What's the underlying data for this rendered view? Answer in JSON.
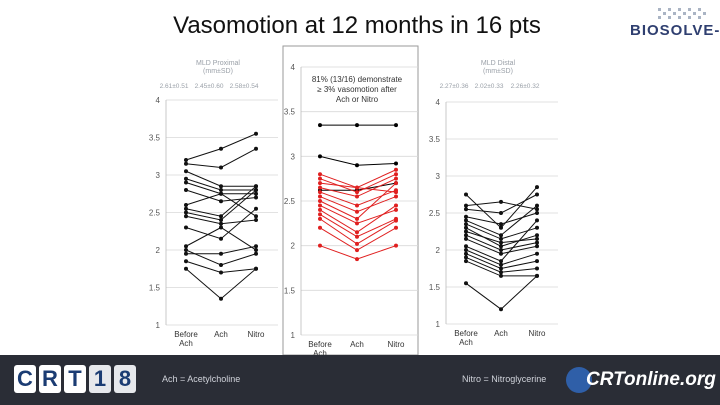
{
  "title": "Vasomotion at 12 months in 16 pts",
  "brand": "BIOSOLVE-II",
  "footer": {
    "ach_legend": "Ach = Acetylcholine",
    "nitro_legend": "Nitro = Nitroglycerine",
    "crt_letters": [
      "C",
      "R",
      "T",
      "1",
      "8"
    ],
    "crtonline": "CRTonline.org"
  },
  "chart_data": [
    {
      "type": "line",
      "panel": "left",
      "title": "MLD Proximal (mm±SD)",
      "subtitle": [
        "2.61±0.51",
        "2.45±0.60",
        "2.58±0.54"
      ],
      "categories": [
        "Before Ach",
        "Ach",
        "Nitro"
      ],
      "ylim": [
        1,
        4
      ],
      "yticks": [
        "1",
        "1.5",
        "2",
        "2.5",
        "3",
        "3.5",
        "4"
      ],
      "series": [
        {
          "values": [
            3.2,
            3.35,
            3.55
          ]
        },
        {
          "values": [
            3.15,
            3.1,
            3.35
          ]
        },
        {
          "values": [
            3.05,
            2.85,
            2.85
          ]
        },
        {
          "values": [
            2.95,
            2.8,
            2.8
          ]
        },
        {
          "values": [
            2.9,
            2.75,
            2.45
          ]
        },
        {
          "values": [
            2.8,
            2.65,
            2.7
          ]
        },
        {
          "values": [
            2.6,
            2.75,
            2.75
          ]
        },
        {
          "values": [
            2.55,
            2.45,
            2.85
          ]
        },
        {
          "values": [
            2.5,
            2.4,
            2.8
          ]
        },
        {
          "values": [
            2.45,
            2.35,
            2.4
          ]
        },
        {
          "values": [
            2.3,
            2.15,
            2.55
          ]
        },
        {
          "values": [
            2.05,
            2.3,
            2.0
          ]
        },
        {
          "values": [
            1.95,
            1.95,
            2.05
          ]
        },
        {
          "values": [
            2.0,
            1.8,
            1.95
          ]
        },
        {
          "values": [
            1.85,
            1.7,
            1.75
          ]
        },
        {
          "values": [
            1.75,
            1.35,
            1.75
          ]
        }
      ]
    },
    {
      "type": "line",
      "panel": "center",
      "annotation": "81% (13/16) demonstrate ≥ 3% vasomotion after Ach or Nitro",
      "categories": [
        "Before Ach",
        "Ach",
        "Nitro"
      ],
      "ylim": [
        1,
        4
      ],
      "yticks": [
        "1",
        "1.5",
        "2",
        "2.5",
        "3",
        "3.5",
        "4"
      ],
      "colors": {
        "responder": "#e02020",
        "non_responder": "#000000"
      },
      "series": [
        {
          "values": [
            3.35,
            3.35,
            3.35
          ],
          "color": "#000000"
        },
        {
          "values": [
            3.0,
            2.9,
            2.92
          ],
          "color": "#000000"
        },
        {
          "values": [
            2.62,
            2.62,
            2.7
          ],
          "color": "#000000"
        },
        {
          "values": [
            2.8,
            2.65,
            2.85
          ],
          "color": "#e02020"
        },
        {
          "values": [
            2.75,
            2.6,
            2.8
          ],
          "color": "#e02020"
        },
        {
          "values": [
            2.7,
            2.65,
            2.6
          ],
          "color": "#e02020"
        },
        {
          "values": [
            2.65,
            2.55,
            2.75
          ],
          "color": "#e02020"
        },
        {
          "values": [
            2.6,
            2.45,
            2.62
          ],
          "color": "#e02020"
        },
        {
          "values": [
            2.55,
            2.38,
            2.55
          ],
          "color": "#e02020"
        },
        {
          "values": [
            2.5,
            2.3,
            2.7
          ],
          "color": "#e02020"
        },
        {
          "values": [
            2.45,
            2.25,
            2.4
          ],
          "color": "#e02020"
        },
        {
          "values": [
            2.4,
            2.15,
            2.45
          ],
          "color": "#e02020"
        },
        {
          "values": [
            2.35,
            2.1,
            2.3
          ],
          "color": "#e02020"
        },
        {
          "values": [
            2.3,
            2.02,
            2.28
          ],
          "color": "#e02020"
        },
        {
          "values": [
            2.2,
            1.95,
            2.2
          ],
          "color": "#e02020"
        },
        {
          "values": [
            2.0,
            1.85,
            2.0
          ],
          "color": "#e02020"
        }
      ]
    },
    {
      "type": "line",
      "panel": "right",
      "title": "MLD Distal (mm±SD)",
      "subtitle": [
        "2.27±0.36",
        "2.02±0.33",
        "2.26±0.32"
      ],
      "categories": [
        "Before Ach",
        "Ach",
        "Nitro"
      ],
      "ylim": [
        1,
        4
      ],
      "yticks": [
        "1",
        "1.5",
        "2",
        "2.5",
        "3",
        "3.5",
        "4"
      ],
      "series": [
        {
          "values": [
            2.75,
            2.3,
            2.85
          ]
        },
        {
          "values": [
            2.6,
            2.65,
            2.55
          ]
        },
        {
          "values": [
            2.55,
            2.5,
            2.75
          ]
        },
        {
          "values": [
            2.45,
            2.35,
            2.5
          ]
        },
        {
          "values": [
            2.4,
            2.2,
            2.6
          ]
        },
        {
          "values": [
            2.35,
            2.15,
            2.3
          ]
        },
        {
          "values": [
            2.3,
            2.05,
            2.2
          ]
        },
        {
          "values": [
            2.25,
            2.1,
            2.15
          ]
        },
        {
          "values": [
            2.2,
            2.0,
            2.1
          ]
        },
        {
          "values": [
            2.15,
            1.95,
            2.05
          ]
        },
        {
          "values": [
            2.05,
            1.85,
            2.4
          ]
        },
        {
          "values": [
            2.0,
            1.8,
            1.95
          ]
        },
        {
          "values": [
            1.95,
            1.75,
            1.85
          ]
        },
        {
          "values": [
            1.9,
            1.7,
            1.75
          ]
        },
        {
          "values": [
            1.85,
            1.65,
            1.65
          ]
        },
        {
          "values": [
            1.55,
            1.2,
            1.65
          ]
        }
      ]
    }
  ]
}
